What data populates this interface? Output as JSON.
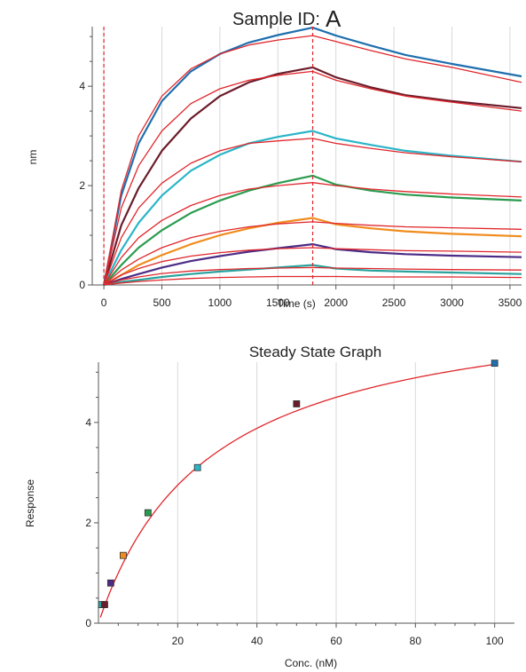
{
  "titles": {
    "sample_prefix": "Sample ID:",
    "sample_letter": "A"
  },
  "chart_data": [
    {
      "type": "line",
      "title": "Sample ID: A",
      "xlabel": "Time (s)",
      "ylabel": "nm",
      "xlim": [
        -100,
        3600
      ],
      "ylim": [
        0,
        5.2
      ],
      "x_ticks": [
        0,
        500,
        1000,
        1500,
        2000,
        2500,
        3000,
        3500
      ],
      "y_ticks": [
        0,
        2,
        4
      ],
      "vlines": [
        0,
        1800
      ],
      "association_end_s": 1800,
      "fit_color": "#e0262b",
      "series": [
        {
          "color": "#1f6fae",
          "points": [
            [
              0,
              0
            ],
            [
              150,
              1.8
            ],
            [
              300,
              2.85
            ],
            [
              500,
              3.7
            ],
            [
              750,
              4.3
            ],
            [
              1000,
              4.65
            ],
            [
              1250,
              4.88
            ],
            [
              1500,
              5.03
            ],
            [
              1800,
              5.18
            ],
            [
              2000,
              5.02
            ],
            [
              2300,
              4.82
            ],
            [
              2600,
              4.63
            ],
            [
              3000,
              4.45
            ],
            [
              3600,
              4.2
            ]
          ]
        },
        {
          "color": "#e0262b",
          "points": [
            [
              0,
              0
            ],
            [
              150,
              1.9
            ],
            [
              300,
              3.0
            ],
            [
              500,
              3.8
            ],
            [
              750,
              4.35
            ],
            [
              1000,
              4.65
            ],
            [
              1250,
              4.83
            ],
            [
              1500,
              4.93
            ],
            [
              1800,
              5.02
            ],
            [
              2000,
              4.9
            ],
            [
              2300,
              4.72
            ],
            [
              2600,
              4.55
            ],
            [
              3000,
              4.38
            ],
            [
              3600,
              4.08
            ]
          ]
        },
        {
          "color": "#6b1c2a",
          "points": [
            [
              0,
              0
            ],
            [
              150,
              1.2
            ],
            [
              300,
              1.95
            ],
            [
              500,
              2.7
            ],
            [
              750,
              3.35
            ],
            [
              1000,
              3.8
            ],
            [
              1250,
              4.08
            ],
            [
              1500,
              4.25
            ],
            [
              1800,
              4.38
            ],
            [
              2000,
              4.18
            ],
            [
              2300,
              3.98
            ],
            [
              2600,
              3.82
            ],
            [
              3000,
              3.7
            ],
            [
              3600,
              3.56
            ]
          ]
        },
        {
          "color": "#e0262b",
          "points": [
            [
              0,
              0
            ],
            [
              150,
              1.55
            ],
            [
              300,
              2.4
            ],
            [
              500,
              3.1
            ],
            [
              750,
              3.65
            ],
            [
              1000,
              3.95
            ],
            [
              1250,
              4.12
            ],
            [
              1500,
              4.22
            ],
            [
              1800,
              4.3
            ],
            [
              2000,
              4.12
            ],
            [
              2300,
              3.95
            ],
            [
              2600,
              3.8
            ],
            [
              3000,
              3.68
            ],
            [
              3600,
              3.5
            ]
          ]
        },
        {
          "color": "#2ab5c7",
          "points": [
            [
              0,
              0
            ],
            [
              150,
              0.7
            ],
            [
              300,
              1.25
            ],
            [
              500,
              1.8
            ],
            [
              750,
              2.3
            ],
            [
              1000,
              2.62
            ],
            [
              1250,
              2.85
            ],
            [
              1500,
              2.98
            ],
            [
              1800,
              3.1
            ],
            [
              2000,
              2.95
            ],
            [
              2300,
              2.82
            ],
            [
              2600,
              2.7
            ],
            [
              3000,
              2.6
            ],
            [
              3600,
              2.48
            ]
          ]
        },
        {
          "color": "#e0262b",
          "points": [
            [
              0,
              0
            ],
            [
              150,
              0.95
            ],
            [
              300,
              1.55
            ],
            [
              500,
              2.05
            ],
            [
              750,
              2.45
            ],
            [
              1000,
              2.7
            ],
            [
              1250,
              2.85
            ],
            [
              1500,
              2.9
            ],
            [
              1800,
              2.95
            ],
            [
              2000,
              2.85
            ],
            [
              2300,
              2.75
            ],
            [
              2600,
              2.66
            ],
            [
              3000,
              2.58
            ],
            [
              3600,
              2.48
            ]
          ]
        },
        {
          "color": "#2a9b4e",
          "points": [
            [
              0,
              0
            ],
            [
              150,
              0.4
            ],
            [
              300,
              0.75
            ],
            [
              500,
              1.1
            ],
            [
              750,
              1.45
            ],
            [
              1000,
              1.7
            ],
            [
              1250,
              1.9
            ],
            [
              1500,
              2.05
            ],
            [
              1800,
              2.2
            ],
            [
              2000,
              2.02
            ],
            [
              2300,
              1.9
            ],
            [
              2600,
              1.82
            ],
            [
              3000,
              1.76
            ],
            [
              3600,
              1.7
            ]
          ]
        },
        {
          "color": "#e0262b",
          "points": [
            [
              0,
              0
            ],
            [
              150,
              0.55
            ],
            [
              300,
              0.95
            ],
            [
              500,
              1.3
            ],
            [
              750,
              1.6
            ],
            [
              1000,
              1.8
            ],
            [
              1250,
              1.93
            ],
            [
              1500,
              2.0
            ],
            [
              1800,
              2.06
            ],
            [
              2000,
              2.0
            ],
            [
              2300,
              1.93
            ],
            [
              2600,
              1.88
            ],
            [
              3000,
              1.83
            ],
            [
              3600,
              1.77
            ]
          ]
        },
        {
          "color": "#f08c1d",
          "points": [
            [
              0,
              0
            ],
            [
              150,
              0.2
            ],
            [
              300,
              0.4
            ],
            [
              500,
              0.6
            ],
            [
              750,
              0.82
            ],
            [
              1000,
              1.0
            ],
            [
              1250,
              1.14
            ],
            [
              1500,
              1.25
            ],
            [
              1800,
              1.35
            ],
            [
              2000,
              1.22
            ],
            [
              2300,
              1.14
            ],
            [
              2600,
              1.08
            ],
            [
              3000,
              1.03
            ],
            [
              3600,
              0.98
            ]
          ]
        },
        {
          "color": "#e0262b",
          "points": [
            [
              0,
              0
            ],
            [
              150,
              0.3
            ],
            [
              300,
              0.52
            ],
            [
              500,
              0.75
            ],
            [
              750,
              0.95
            ],
            [
              1000,
              1.08
            ],
            [
              1250,
              1.17
            ],
            [
              1500,
              1.23
            ],
            [
              1800,
              1.27
            ],
            [
              2000,
              1.24
            ],
            [
              2300,
              1.2
            ],
            [
              2600,
              1.17
            ],
            [
              3000,
              1.15
            ],
            [
              3600,
              1.12
            ]
          ]
        },
        {
          "color": "#4b2b86",
          "points": [
            [
              0,
              0
            ],
            [
              150,
              0.12
            ],
            [
              300,
              0.22
            ],
            [
              500,
              0.35
            ],
            [
              750,
              0.48
            ],
            [
              1000,
              0.58
            ],
            [
              1250,
              0.67
            ],
            [
              1500,
              0.74
            ],
            [
              1800,
              0.82
            ],
            [
              2000,
              0.72
            ],
            [
              2300,
              0.66
            ],
            [
              2600,
              0.62
            ],
            [
              3000,
              0.59
            ],
            [
              3600,
              0.56
            ]
          ]
        },
        {
          "color": "#e0262b",
          "points": [
            [
              0,
              0
            ],
            [
              150,
              0.2
            ],
            [
              300,
              0.33
            ],
            [
              500,
              0.47
            ],
            [
              750,
              0.58
            ],
            [
              1000,
              0.65
            ],
            [
              1250,
              0.7
            ],
            [
              1500,
              0.73
            ],
            [
              1800,
              0.75
            ],
            [
              2000,
              0.73
            ],
            [
              2300,
              0.71
            ],
            [
              2600,
              0.69
            ],
            [
              3000,
              0.68
            ],
            [
              3600,
              0.66
            ]
          ]
        },
        {
          "color": "#2aa39e",
          "points": [
            [
              0,
              0
            ],
            [
              150,
              0.06
            ],
            [
              300,
              0.1
            ],
            [
              500,
              0.16
            ],
            [
              750,
              0.22
            ],
            [
              1000,
              0.27
            ],
            [
              1250,
              0.31
            ],
            [
              1500,
              0.35
            ],
            [
              1800,
              0.4
            ],
            [
              2000,
              0.33
            ],
            [
              2300,
              0.29
            ],
            [
              2600,
              0.27
            ],
            [
              3000,
              0.25
            ],
            [
              3600,
              0.22
            ]
          ]
        },
        {
          "color": "#e0262b",
          "points": [
            [
              0,
              0
            ],
            [
              150,
              0.1
            ],
            [
              300,
              0.16
            ],
            [
              500,
              0.23
            ],
            [
              750,
              0.28
            ],
            [
              1000,
              0.31
            ],
            [
              1250,
              0.33
            ],
            [
              1500,
              0.34
            ],
            [
              1800,
              0.35
            ],
            [
              2000,
              0.34
            ],
            [
              2300,
              0.33
            ],
            [
              2600,
              0.32
            ],
            [
              3000,
              0.31
            ],
            [
              3600,
              0.3
            ]
          ]
        },
        {
          "color": "#e0262b",
          "points": [
            [
              0,
              0
            ],
            [
              150,
              0.04
            ],
            [
              300,
              0.07
            ],
            [
              500,
              0.1
            ],
            [
              750,
              0.13
            ],
            [
              1000,
              0.15
            ],
            [
              1250,
              0.16
            ],
            [
              1500,
              0.17
            ],
            [
              1800,
              0.17
            ],
            [
              2000,
              0.17
            ],
            [
              2300,
              0.16
            ],
            [
              2600,
              0.16
            ],
            [
              3000,
              0.16
            ],
            [
              3600,
              0.15
            ]
          ]
        }
      ]
    },
    {
      "type": "scatter",
      "title": "Steady State Graph",
      "xlabel": "Conc. (nM)",
      "ylabel": "Response",
      "xlim": [
        0,
        105
      ],
      "ylim": [
        0,
        5.2
      ],
      "x_ticks": [
        20,
        40,
        60,
        80,
        100
      ],
      "y_ticks": [
        0,
        2,
        4
      ],
      "points": [
        {
          "x": 0.78,
          "y": 0.37,
          "color": "#2aa39e"
        },
        {
          "x": 1.56,
          "y": 0.37,
          "color": "#6b1c2a"
        },
        {
          "x": 3.1,
          "y": 0.8,
          "color": "#4b2b86"
        },
        {
          "x": 6.25,
          "y": 1.35,
          "color": "#f08c1d"
        },
        {
          "x": 12.5,
          "y": 2.2,
          "color": "#2a9b4e"
        },
        {
          "x": 25,
          "y": 3.1,
          "color": "#2ab5c7"
        },
        {
          "x": 50,
          "y": 4.37,
          "color": "#6b1c2a"
        },
        {
          "x": 100,
          "y": 5.18,
          "color": "#1f6fae"
        }
      ],
      "fit": {
        "type": "langmuir",
        "Rmax": 6.6,
        "KD": 28,
        "color": "#e0262b"
      }
    }
  ]
}
